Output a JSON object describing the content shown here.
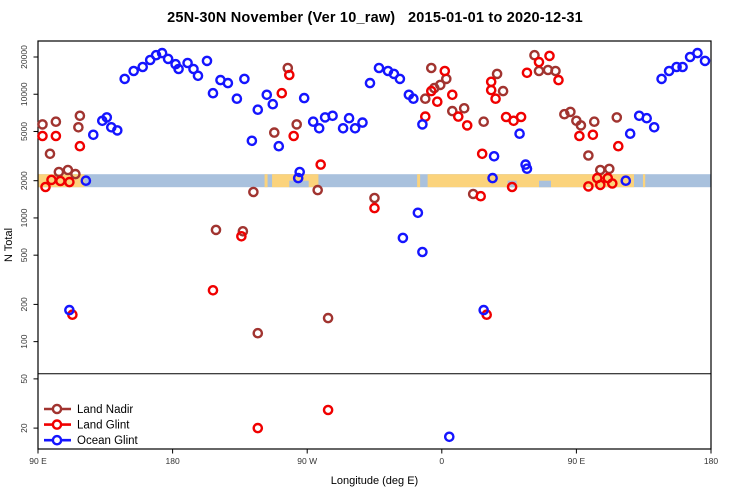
{
  "chart_data": {
    "type": "scatter",
    "title": "25N-30N November (Ver 10_raw)   2015-01-01 to 2020-12-31",
    "xlabel": "Longitude (deg E)",
    "ylabel": "N Total",
    "y_scale": "log",
    "y_range": [
      13.5,
      27000
    ],
    "x_range_wrapped_deg": [
      90,
      540
    ],
    "x_ticks": [
      {
        "value": 90,
        "label": "90 E"
      },
      {
        "value": 180,
        "label": "180"
      },
      {
        "value": 270,
        "label": "90 W"
      },
      {
        "value": 360,
        "label": "0"
      },
      {
        "value": 450,
        "label": "90 E"
      },
      {
        "value": 540,
        "label": "180"
      }
    ],
    "y_ticks": [
      "20",
      "50",
      "100",
      "200",
      "500",
      "1000",
      "2000",
      "5000",
      "10000",
      "20000"
    ],
    "reference_line": 55,
    "map_strip": {
      "at_value": 2000,
      "ocean_color": "#A9C1DD",
      "land_color": "#FBD37C",
      "land_segments_lon": [
        [
          90,
          121
        ],
        [
          241.5,
          243.5
        ],
        [
          246.5,
          277.5
        ],
        [
          343.5,
          345.5
        ],
        [
          350.5,
          488.5
        ],
        [
          494.5,
          496
        ]
      ],
      "ocean_notches_lon": [
        [
          258,
          271
        ],
        [
          404,
          410
        ],
        [
          425,
          433
        ]
      ]
    },
    "series": [
      {
        "name": "Land Nadir",
        "color": "#A13430",
        "points": [
          [
            93,
            5700
          ],
          [
            102,
            6000
          ],
          [
            118,
            6700
          ],
          [
            117,
            5400
          ],
          [
            98,
            3300
          ],
          [
            104,
            2350
          ],
          [
            110,
            2440
          ],
          [
            115,
            2260
          ],
          [
            257,
            16300
          ],
          [
            263,
            5700
          ],
          [
            248,
            4900
          ],
          [
            277,
            1680
          ],
          [
            234,
            1620
          ],
          [
            227,
            780
          ],
          [
            209,
            800
          ],
          [
            284,
            155
          ],
          [
            237,
            117
          ],
          [
            315,
            1450
          ],
          [
            349,
            9200
          ],
          [
            353,
            16300
          ],
          [
            355,
            11200
          ],
          [
            359,
            11900
          ],
          [
            363,
            13300
          ],
          [
            367,
            7300
          ],
          [
            375,
            7700
          ],
          [
            388,
            6000
          ],
          [
            397,
            14600
          ],
          [
            401,
            10600
          ],
          [
            381,
            1560
          ],
          [
            422,
            20700
          ],
          [
            425,
            15400
          ],
          [
            431,
            15700
          ],
          [
            436,
            15400
          ],
          [
            442,
            6900
          ],
          [
            446,
            7200
          ],
          [
            450,
            6100
          ],
          [
            453,
            5600
          ],
          [
            462,
            6000
          ],
          [
            477,
            6500
          ],
          [
            458,
            3200
          ],
          [
            466,
            2440
          ],
          [
            472,
            2490
          ]
        ]
      },
      {
        "name": "Land Glint",
        "color": "#F00000",
        "points": [
          [
            93,
            4600
          ],
          [
            102,
            4600
          ],
          [
            118,
            3800
          ],
          [
            99,
            2030
          ],
          [
            105,
            1990
          ],
          [
            111,
            1950
          ],
          [
            95,
            1780
          ],
          [
            258,
            14300
          ],
          [
            253,
            10200
          ],
          [
            261,
            4600
          ],
          [
            279,
            2700
          ],
          [
            226,
            710
          ],
          [
            207,
            260
          ],
          [
            113,
            165
          ],
          [
            284,
            28
          ],
          [
            237,
            20
          ],
          [
            362,
            15400
          ],
          [
            353,
            10600
          ],
          [
            357,
            8700
          ],
          [
            349,
            6600
          ],
          [
            367,
            9900
          ],
          [
            371,
            6600
          ],
          [
            377,
            5600
          ],
          [
            393,
            12600
          ],
          [
            393,
            10800
          ],
          [
            396,
            9200
          ],
          [
            403,
            6550
          ],
          [
            408,
            6100
          ],
          [
            413,
            6550
          ],
          [
            417,
            14900
          ],
          [
            425,
            18200
          ],
          [
            432,
            20400
          ],
          [
            438,
            13000
          ],
          [
            387,
            3300
          ],
          [
            407,
            1780
          ],
          [
            386,
            1500
          ],
          [
            315,
            1200
          ],
          [
            390,
            165
          ],
          [
            452,
            4600
          ],
          [
            461,
            4700
          ],
          [
            478,
            3800
          ],
          [
            464,
            2100
          ],
          [
            471,
            2100
          ],
          [
            466,
            1850
          ],
          [
            474,
            1900
          ],
          [
            458,
            1800
          ]
        ]
      },
      {
        "name": "Ocean Glint",
        "color": "#1515FF",
        "points": [
          [
            148,
            13300
          ],
          [
            154,
            15400
          ],
          [
            160,
            16600
          ],
          [
            165,
            18900
          ],
          [
            169,
            20700
          ],
          [
            173,
            21500
          ],
          [
            177,
            19300
          ],
          [
            182,
            17500
          ],
          [
            184,
            16000
          ],
          [
            190,
            17900
          ],
          [
            194,
            16000
          ],
          [
            197,
            14100
          ],
          [
            203,
            18600
          ],
          [
            127,
            4700
          ],
          [
            133,
            6100
          ],
          [
            136,
            6500
          ],
          [
            139,
            5400
          ],
          [
            143,
            5100
          ],
          [
            122,
            2000
          ],
          [
            212,
            13000
          ],
          [
            217,
            12300
          ],
          [
            207,
            10200
          ],
          [
            228,
            13300
          ],
          [
            223,
            9200
          ],
          [
            243,
            9900
          ],
          [
            247,
            8300
          ],
          [
            237,
            7500
          ],
          [
            268,
            9300
          ],
          [
            274,
            6000
          ],
          [
            278,
            5300
          ],
          [
            282,
            6500
          ],
          [
            287,
            6700
          ],
          [
            294,
            5300
          ],
          [
            298,
            6400
          ],
          [
            302,
            5300
          ],
          [
            307,
            5900
          ],
          [
            233,
            4200
          ],
          [
            251,
            3800
          ],
          [
            265,
            2350
          ],
          [
            264,
            2100
          ],
          [
            111,
            180
          ],
          [
            318,
            16300
          ],
          [
            324,
            15400
          ],
          [
            328,
            14600
          ],
          [
            332,
            13300
          ],
          [
            312,
            12300
          ],
          [
            338,
            9900
          ],
          [
            341,
            9200
          ],
          [
            347,
            5700
          ],
          [
            412,
            4800
          ],
          [
            395,
            3150
          ],
          [
            394,
            2100
          ],
          [
            417,
            2500
          ],
          [
            416,
            2700
          ],
          [
            344,
            1100
          ],
          [
            334,
            690
          ],
          [
            347,
            530
          ],
          [
            365,
            17
          ],
          [
            388,
            180
          ],
          [
            507,
            13300
          ],
          [
            512,
            15400
          ],
          [
            517,
            16600
          ],
          [
            521,
            16600
          ],
          [
            526,
            20000
          ],
          [
            531,
            21500
          ],
          [
            536,
            18600
          ],
          [
            492,
            6700
          ],
          [
            497,
            6400
          ],
          [
            486,
            4800
          ],
          [
            502,
            5400
          ],
          [
            483,
            2000
          ]
        ]
      }
    ]
  },
  "legend": {
    "items": [
      "Land Nadir",
      "Land Glint",
      "Ocean Glint"
    ]
  }
}
